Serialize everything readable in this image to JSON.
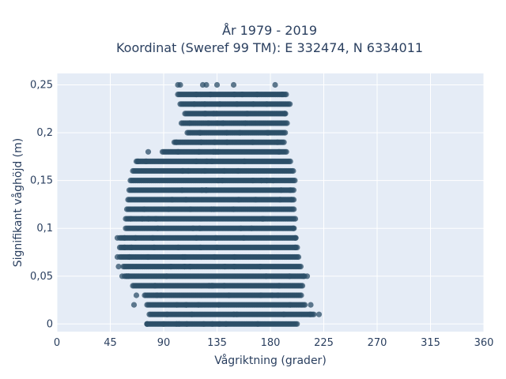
{
  "chart_data": {
    "type": "scatter",
    "title": "År 1979 - 2019",
    "subtitle": "Koordinat (Sweref 99 TM): E 332474, N 6334011",
    "xlabel": "Vågriktning (grader)",
    "ylabel": "Signifikant våghöjd (m)",
    "xlim": [
      0,
      360
    ],
    "ylim": [
      -0.008,
      0.262
    ],
    "grid": true,
    "x_ticks": [
      0,
      45,
      90,
      135,
      180,
      225,
      270,
      315,
      360
    ],
    "x_tick_labels": [
      "0",
      "45",
      "90",
      "135",
      "180",
      "225",
      "270",
      "315",
      "360"
    ],
    "y_ticks": [
      0,
      0.05,
      0.1,
      0.15,
      0.2,
      0.25
    ],
    "y_tick_labels": [
      "0",
      "0,05",
      "0,1",
      "0,15",
      "0,2",
      "0,25"
    ],
    "marker_color": "#2c4f68",
    "background_color": "#e5ecf6",
    "bands": [
      {
        "y": 0.0,
        "x_min": 76,
        "x_max": 203
      },
      {
        "y": 0.01,
        "x_min": 78,
        "x_max": 217
      },
      {
        "y": 0.02,
        "x_min": 76,
        "x_max": 210
      },
      {
        "y": 0.03,
        "x_min": 74,
        "x_max": 207
      },
      {
        "y": 0.04,
        "x_min": 64,
        "x_max": 207
      },
      {
        "y": 0.05,
        "x_min": 57,
        "x_max": 209
      },
      {
        "y": 0.06,
        "x_min": 56,
        "x_max": 206
      },
      {
        "y": 0.07,
        "x_min": 53,
        "x_max": 204
      },
      {
        "y": 0.08,
        "x_min": 53,
        "x_max": 203
      },
      {
        "y": 0.09,
        "x_min": 53,
        "x_max": 202
      },
      {
        "y": 0.1,
        "x_min": 58,
        "x_max": 200
      },
      {
        "y": 0.11,
        "x_min": 58,
        "x_max": 201
      },
      {
        "y": 0.12,
        "x_min": 59,
        "x_max": 200
      },
      {
        "y": 0.13,
        "x_min": 60,
        "x_max": 200
      },
      {
        "y": 0.14,
        "x_min": 61,
        "x_max": 200
      },
      {
        "y": 0.15,
        "x_min": 62,
        "x_max": 201
      },
      {
        "y": 0.16,
        "x_min": 64,
        "x_max": 200
      },
      {
        "y": 0.17,
        "x_min": 67,
        "x_max": 197
      },
      {
        "y": 0.18,
        "x_min": 89,
        "x_max": 194
      },
      {
        "y": 0.19,
        "x_min": 99,
        "x_max": 192
      },
      {
        "y": 0.2,
        "x_min": 110,
        "x_max": 193
      },
      {
        "y": 0.21,
        "x_min": 105,
        "x_max": 195
      },
      {
        "y": 0.22,
        "x_min": 108,
        "x_max": 193
      },
      {
        "y": 0.23,
        "x_min": 104,
        "x_max": 197
      },
      {
        "y": 0.24,
        "x_min": 102,
        "x_max": 194
      }
    ],
    "outlier_points": [
      {
        "x": 77,
        "y": 0.18
      },
      {
        "x": 102,
        "y": 0.25
      },
      {
        "x": 104,
        "y": 0.25
      },
      {
        "x": 123,
        "y": 0.25
      },
      {
        "x": 126,
        "y": 0.25
      },
      {
        "x": 135,
        "y": 0.25
      },
      {
        "x": 149,
        "y": 0.25
      },
      {
        "x": 184,
        "y": 0.25
      },
      {
        "x": 76,
        "y": 0.0
      },
      {
        "x": 90,
        "y": 0.0
      },
      {
        "x": 103,
        "y": 0.0
      },
      {
        "x": 131,
        "y": 0.0
      },
      {
        "x": 137,
        "y": 0.0
      },
      {
        "x": 65,
        "y": 0.02
      },
      {
        "x": 67,
        "y": 0.03
      },
      {
        "x": 211,
        "y": 0.05
      },
      {
        "x": 221,
        "y": 0.01
      },
      {
        "x": 214,
        "y": 0.02
      },
      {
        "x": 51,
        "y": 0.09
      },
      {
        "x": 51,
        "y": 0.07
      },
      {
        "x": 52,
        "y": 0.06
      },
      {
        "x": 57,
        "y": 0.08
      },
      {
        "x": 55,
        "y": 0.05
      },
      {
        "x": 57,
        "y": 0.09
      }
    ]
  }
}
